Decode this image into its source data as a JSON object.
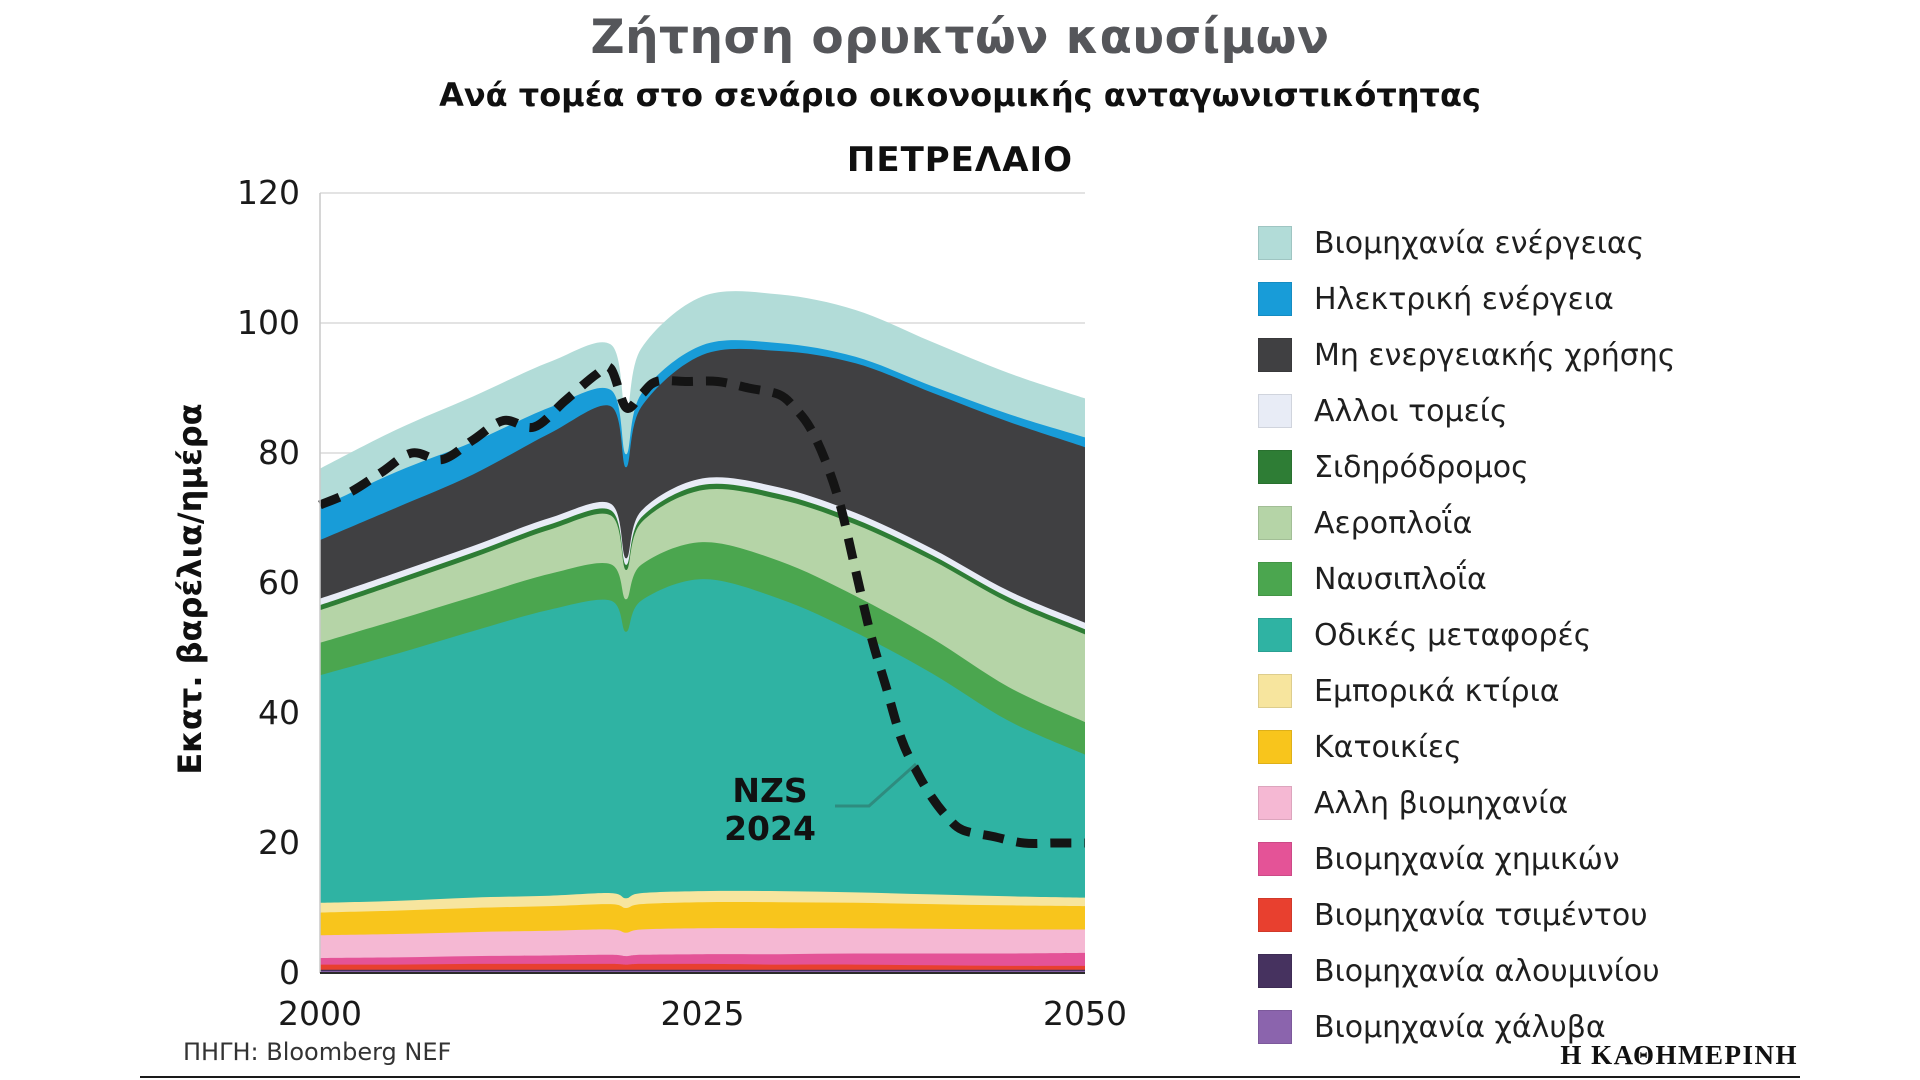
{
  "page": {
    "title": "Ζήτηση ορυκτών καυσίμων",
    "subtitle": "Ανά τομέα στο σενάριο οικονομικής ανταγωνιστικότητας",
    "source": "ΠΗΓΗ: Bloomberg NEF",
    "brand": "Η ΚΑΘΗΜΕΡΙΝΗ"
  },
  "legend": {
    "position": "right",
    "items": [
      {
        "label": "Βιομηχανία ενέργειας",
        "color": "#b2dcd8"
      },
      {
        "label": "Ηλεκτρική ενέργεια",
        "color": "#189cd8"
      },
      {
        "label": "Μη ενεργειακής χρήσης",
        "color": "#404042"
      },
      {
        "label": "Αλλοι τομείς",
        "color": "#e8ecf6"
      },
      {
        "label": "Σιδηρόδρομος",
        "color": "#2e7d35"
      },
      {
        "label": "Αεροπλοΐα",
        "color": "#b5d4a7"
      },
      {
        "label": "Ναυσιπλοΐα",
        "color": "#4ba64f"
      },
      {
        "label": "Οδικές μεταφορές",
        "color": "#2fb3a3"
      },
      {
        "label": "Εμπορικά κτίρια",
        "color": "#f7e59e"
      },
      {
        "label": "Κατοικίες",
        "color": "#f8c51c"
      },
      {
        "label": "Αλλη βιομηχανία",
        "color": "#f5b8d3"
      },
      {
        "label": "Βιομηχανία χημικών",
        "color": "#e45397"
      },
      {
        "label": "Βιομηχανία τσιμέντου",
        "color": "#e8402f"
      },
      {
        "label": "Βιομηχανία αλουμινίου",
        "color": "#46325f"
      },
      {
        "label": "Βιομηχανία χάλυβα",
        "color": "#8b64ad"
      }
    ]
  },
  "chart_data": {
    "type": "area",
    "stacked": true,
    "title": "ΠΕΤΡΕΛΑΙΟ",
    "ylabel": "Εκατ. βαρέλια/ημέρα",
    "unit": "million barrels/day",
    "xlim": [
      2000,
      2050
    ],
    "ylim": [
      0,
      120
    ],
    "yticks": [
      0,
      20,
      40,
      60,
      80,
      100,
      120
    ],
    "xticks": [
      2000,
      2025,
      2050
    ],
    "grid": true,
    "legend_position": "right",
    "x": [
      2000,
      2005,
      2010,
      2015,
      2019,
      2020,
      2021,
      2025,
      2030,
      2035,
      2040,
      2045,
      2050
    ],
    "series": [
      {
        "id": "steel",
        "name": "Βιομηχανία χάλυβα",
        "color": "#8b64ad",
        "values": [
          0.3,
          0.3,
          0.3,
          0.3,
          0.3,
          0.3,
          0.3,
          0.3,
          0.3,
          0.3,
          0.3,
          0.3,
          0.3
        ]
      },
      {
        "id": "aluminum",
        "name": "Βιομηχανία αλουμινίου",
        "color": "#46325f",
        "values": [
          0.2,
          0.2,
          0.2,
          0.2,
          0.2,
          0.2,
          0.2,
          0.2,
          0.2,
          0.2,
          0.2,
          0.2,
          0.2
        ]
      },
      {
        "id": "cement",
        "name": "Βιομηχανία τσιμέντου",
        "color": "#e8402f",
        "values": [
          0.8,
          0.8,
          0.9,
          0.9,
          0.9,
          0.8,
          0.9,
          0.9,
          0.8,
          0.8,
          0.7,
          0.6,
          0.6
        ]
      },
      {
        "id": "chemicals",
        "name": "Βιομηχανία χημικών",
        "color": "#e45397",
        "values": [
          1.0,
          1.1,
          1.2,
          1.3,
          1.4,
          1.3,
          1.4,
          1.5,
          1.6,
          1.7,
          1.8,
          1.9,
          2.0
        ]
      },
      {
        "id": "other-industry",
        "name": "Αλλη βιομηχανία",
        "color": "#f5b8d3",
        "values": [
          3.5,
          3.6,
          3.7,
          3.8,
          3.9,
          3.6,
          3.9,
          4.0,
          4.0,
          3.9,
          3.8,
          3.7,
          3.6
        ]
      },
      {
        "id": "residences",
        "name": "Κατοικίες",
        "color": "#f8c51c",
        "values": [
          3.5,
          3.6,
          3.7,
          3.8,
          3.9,
          3.8,
          3.9,
          4.0,
          4.0,
          3.9,
          3.8,
          3.7,
          3.6
        ]
      },
      {
        "id": "commercial-buildings",
        "name": "Εμπορικά κτίρια",
        "color": "#f7e59e",
        "values": [
          1.5,
          1.5,
          1.6,
          1.6,
          1.7,
          1.5,
          1.7,
          1.7,
          1.7,
          1.6,
          1.5,
          1.4,
          1.3
        ]
      },
      {
        "id": "road-transport",
        "name": "Οδικές μεταφορές",
        "color": "#2fb3a3",
        "values": [
          35,
          38,
          41,
          44,
          45,
          41,
          45,
          48,
          45,
          40,
          34,
          27,
          22
        ]
      },
      {
        "id": "shipping",
        "name": "Ναυσιπλοΐα",
        "color": "#4ba64f",
        "values": [
          5.0,
          5.2,
          5.3,
          5.5,
          5.6,
          5.0,
          5.5,
          5.7,
          5.8,
          5.6,
          5.4,
          5.2,
          5.0
        ]
      },
      {
        "id": "aviation",
        "name": "Αεροπλοΐα",
        "color": "#b5d4a7",
        "values": [
          5.0,
          5.5,
          6.0,
          6.8,
          7.5,
          4.5,
          6.5,
          8.0,
          9.5,
          11.0,
          12.0,
          13.0,
          13.5
        ]
      },
      {
        "id": "rail",
        "name": "Σιδηρόδρομος",
        "color": "#2e7d35",
        "values": [
          0.8,
          0.8,
          0.8,
          0.8,
          0.8,
          0.8,
          0.8,
          0.8,
          0.8,
          0.8,
          0.8,
          0.8,
          0.8
        ]
      },
      {
        "id": "other-sectors",
        "name": "Αλλοι τομείς",
        "color": "#e8ecf6",
        "values": [
          1.0,
          1.0,
          1.0,
          1.0,
          1.0,
          1.0,
          1.0,
          1.0,
          1.0,
          1.0,
          1.0,
          1.0,
          1.0
        ]
      },
      {
        "id": "non-energy-use",
        "name": "Μη ενεργειακής χρήσης",
        "color": "#404042",
        "values": [
          9,
          10,
          11,
          13,
          15,
          14,
          16,
          19,
          21,
          23,
          24,
          26,
          27
        ]
      },
      {
        "id": "electric-power",
        "name": "Ηλεκτρική ενέργεια",
        "color": "#189cd8",
        "values": [
          5.0,
          5.5,
          5.0,
          4.0,
          2.5,
          2.0,
          2.0,
          1.5,
          1.2,
          1.0,
          1.0,
          1.2,
          1.5
        ]
      },
      {
        "id": "energy-industry",
        "name": "Βιομηχανία ενέργειας",
        "color": "#b2dcd8",
        "values": [
          6.0,
          6.5,
          7.0,
          7.0,
          7.0,
          6.5,
          7.0,
          7.5,
          7.5,
          7.2,
          6.8,
          6.3,
          6.0
        ]
      }
    ],
    "nzs_line": {
      "label_line1": "NZS",
      "label_line2": "2024",
      "style": "dashed",
      "color": "#141414",
      "x": [
        2000,
        2002,
        2004,
        2006,
        2008,
        2010,
        2012,
        2014,
        2016,
        2018,
        2019,
        2020,
        2021,
        2022,
        2024,
        2026,
        2028,
        2030,
        2031,
        2032,
        2033,
        2034,
        2035,
        2036,
        2037,
        2038,
        2039,
        2040,
        2041,
        2042,
        2044,
        2046,
        2048,
        2050
      ],
      "y": [
        72,
        74,
        77,
        80,
        79,
        82,
        85,
        84,
        88,
        92,
        93,
        87,
        89,
        91,
        91,
        91,
        90,
        89,
        87,
        84,
        79,
        72,
        62,
        52,
        44,
        36,
        31,
        27,
        24,
        22,
        21,
        20,
        20,
        20
      ]
    }
  }
}
